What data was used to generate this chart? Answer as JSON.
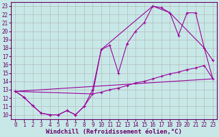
{
  "xlabel": "Windchill (Refroidissement éolien,°C)",
  "xlim": [
    -0.5,
    23.5
  ],
  "ylim": [
    9.5,
    23.5
  ],
  "xticks": [
    0,
    1,
    2,
    3,
    4,
    5,
    6,
    7,
    8,
    9,
    10,
    11,
    12,
    13,
    14,
    15,
    16,
    17,
    18,
    19,
    20,
    21,
    22,
    23
  ],
  "yticks": [
    10,
    11,
    12,
    13,
    14,
    15,
    16,
    17,
    18,
    19,
    20,
    21,
    22,
    23
  ],
  "background_color": "#c8e8e8",
  "line_color": "#990099",
  "grid_color": "#b0b0b0",
  "line1_x": [
    0,
    1,
    2,
    3,
    4,
    5,
    6,
    7,
    8,
    9,
    10,
    11,
    12,
    13,
    14,
    15,
    16,
    17,
    18,
    19,
    20,
    21,
    22,
    23
  ],
  "line1_y": [
    12.8,
    12.1,
    11.1,
    10.2,
    10.0,
    10.0,
    10.5,
    10.0,
    11.0,
    13.0,
    17.8,
    18.3,
    15.0,
    18.5,
    20.0,
    21.0,
    23.0,
    22.8,
    22.2,
    19.5,
    22.2,
    22.2,
    18.0,
    16.5
  ],
  "line2_x": [
    0,
    1,
    2,
    3,
    4,
    5,
    6,
    7,
    8,
    9,
    10,
    11,
    12,
    13,
    14,
    15,
    16,
    17,
    18,
    19,
    20,
    21,
    22,
    23
  ],
  "line2_y": [
    12.8,
    12.1,
    11.1,
    10.2,
    10.0,
    10.0,
    10.5,
    10.0,
    11.0,
    12.5,
    12.7,
    13.0,
    13.2,
    13.5,
    13.8,
    14.0,
    14.3,
    14.6,
    14.9,
    15.1,
    15.4,
    15.6,
    15.9,
    14.3
  ],
  "line3_x": [
    0,
    23
  ],
  "line3_y": [
    12.8,
    14.3
  ],
  "line4_x": [
    0,
    9,
    10,
    16,
    18,
    22,
    23
  ],
  "line4_y": [
    12.8,
    12.5,
    17.8,
    23.0,
    22.2,
    18.0,
    14.3
  ],
  "tick_fontsize": 5.5,
  "label_fontsize": 6.5
}
